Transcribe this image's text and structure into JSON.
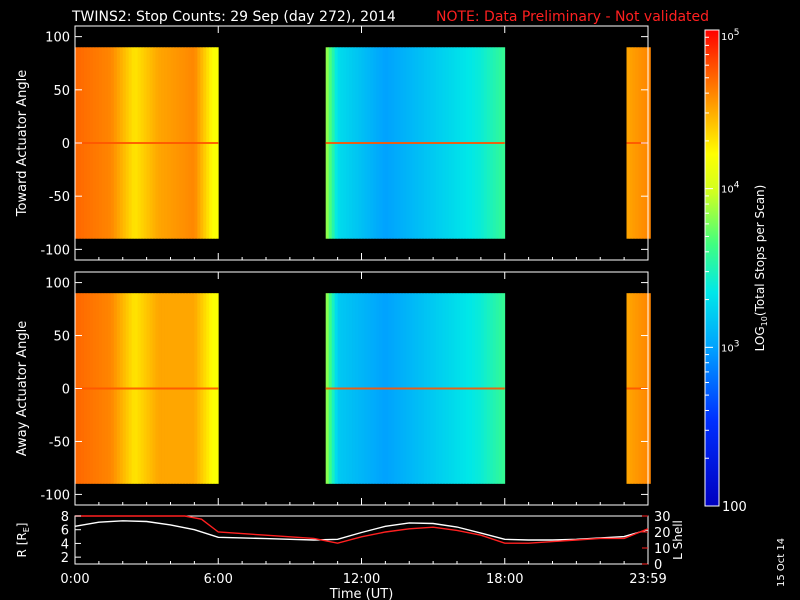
{
  "header": {
    "title": "TWINS2: Stop Counts: 29 Sep (day 272), 2014",
    "note": "NOTE: Data Preliminary - Not validated"
  },
  "footer": {
    "date_stamp": "15 Oct 14"
  },
  "colors": {
    "background": "#000000",
    "axis": "#ffffff",
    "note_red": "#ff2020",
    "r_line": "#ffffff",
    "lshell_line": "#ff2020"
  },
  "chart_data": [
    {
      "type": "heatmap",
      "panel": "toward",
      "ylabel": "Toward Actuator Angle",
      "ylim": [
        -110,
        110
      ],
      "yticks": [
        "100",
        "50",
        "0",
        "-50",
        "-100"
      ],
      "xlim_hours": [
        0,
        24
      ],
      "data_coverage_hours": [
        [
          0,
          6.0
        ],
        [
          10.5,
          18.0
        ],
        [
          23.1,
          24
        ]
      ],
      "angle_range": [
        -90,
        90
      ],
      "log10_counts_by_time": [
        {
          "t": 0.0,
          "v": 4.7
        },
        {
          "t": 1.5,
          "v": 4.6
        },
        {
          "t": 2.5,
          "v": 4.3
        },
        {
          "t": 3.5,
          "v": 4.5
        },
        {
          "t": 5.0,
          "v": 4.6
        },
        {
          "t": 5.8,
          "v": 4.2
        },
        {
          "t": 10.5,
          "v": 3.9
        },
        {
          "t": 11.0,
          "v": 3.3
        },
        {
          "t": 13.0,
          "v": 3.0
        },
        {
          "t": 15.0,
          "v": 3.2
        },
        {
          "t": 17.0,
          "v": 3.4
        },
        {
          "t": 18.0,
          "v": 3.6
        },
        {
          "t": 23.1,
          "v": 4.5
        },
        {
          "t": 24.0,
          "v": 4.6
        }
      ]
    },
    {
      "type": "heatmap",
      "panel": "away",
      "ylabel": "Away Actuator Angle",
      "ylim": [
        -110,
        110
      ],
      "yticks": [
        "100",
        "50",
        "0",
        "-50",
        "-100"
      ],
      "xlim_hours": [
        0,
        24
      ],
      "data_coverage_hours": [
        [
          0,
          6.0
        ],
        [
          10.5,
          18.0
        ],
        [
          23.1,
          24
        ]
      ],
      "angle_range": [
        -90,
        90
      ],
      "log10_counts_by_time": [
        {
          "t": 0.0,
          "v": 4.7
        },
        {
          "t": 1.5,
          "v": 4.6
        },
        {
          "t": 2.5,
          "v": 4.3
        },
        {
          "t": 3.5,
          "v": 4.5
        },
        {
          "t": 5.0,
          "v": 4.5
        },
        {
          "t": 5.8,
          "v": 4.2
        },
        {
          "t": 10.5,
          "v": 3.9
        },
        {
          "t": 11.0,
          "v": 3.2
        },
        {
          "t": 13.0,
          "v": 3.0
        },
        {
          "t": 15.0,
          "v": 3.2
        },
        {
          "t": 17.0,
          "v": 3.4
        },
        {
          "t": 18.0,
          "v": 3.6
        },
        {
          "t": 23.1,
          "v": 4.5
        },
        {
          "t": 24.0,
          "v": 4.6
        }
      ]
    },
    {
      "type": "line",
      "panel": "orbit",
      "ylabel_left": "R [R",
      "ylabel_left_sub": "E",
      "ylabel_left_close": "]",
      "ylabel_right": "L Shell",
      "xlabel": "Time (UT)",
      "xticks": [
        "0:00",
        "6:00",
        "12:00",
        "18:00",
        "23:59"
      ],
      "xlim_hours": [
        0,
        24
      ],
      "ylim_left": [
        1,
        8
      ],
      "yticks_left": [
        "8",
        "6",
        "4",
        "2"
      ],
      "ylim_right": [
        0,
        30
      ],
      "yticks_right": [
        "30",
        "20",
        "10",
        "0"
      ],
      "series": [
        {
          "name": "R",
          "axis": "left",
          "x": [
            0,
            1,
            2,
            3,
            4,
            5,
            6,
            7,
            8,
            9,
            10,
            11,
            12,
            13,
            14,
            15,
            16,
            17,
            18,
            19,
            20,
            21,
            22,
            23,
            24
          ],
          "y": [
            6.5,
            7.1,
            7.3,
            7.2,
            6.7,
            6.0,
            4.9,
            4.8,
            4.7,
            4.6,
            4.5,
            4.6,
            5.6,
            6.5,
            7.0,
            6.9,
            6.4,
            5.5,
            4.6,
            4.5,
            4.5,
            4.6,
            4.8,
            5.0,
            6.0
          ]
        },
        {
          "name": "L Shell",
          "axis": "right",
          "x": [
            0,
            4.6,
            5.3,
            6,
            8,
            10,
            11,
            12,
            13,
            14,
            15,
            16,
            17,
            18,
            19,
            20,
            21,
            22,
            23,
            24
          ],
          "y": [
            30,
            30,
            28,
            20,
            18,
            16,
            13,
            17,
            20,
            22,
            23,
            21,
            18,
            13,
            13,
            14,
            15,
            16,
            16,
            22
          ]
        }
      ]
    },
    {
      "type": "colorbar",
      "label_prefix": "LOG",
      "label_sub": "10",
      "label_suffix": "(Total Stops per Scan)",
      "scale": "log",
      "range": [
        100,
        100000
      ],
      "ticks": [
        {
          "value": 100000,
          "base": "10",
          "exp": "5"
        },
        {
          "value": 10000,
          "base": "10",
          "exp": "4"
        },
        {
          "value": 1000,
          "base": "10",
          "exp": "3"
        },
        {
          "value": 100,
          "label": "100"
        }
      ]
    }
  ]
}
